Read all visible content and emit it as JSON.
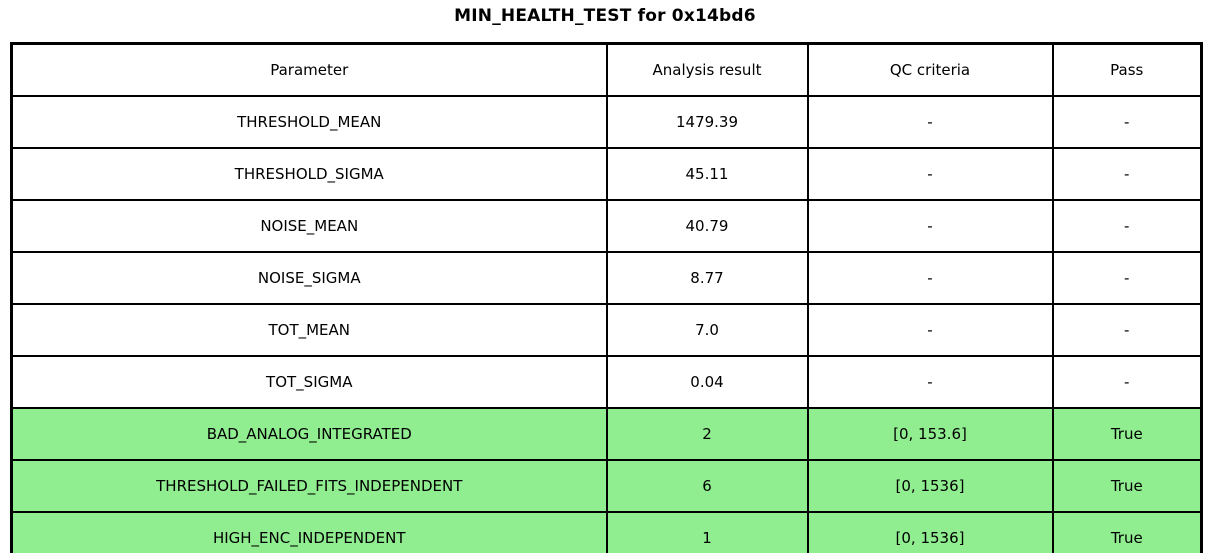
{
  "title": "MIN_HEALTH_TEST for 0x14bd6",
  "colors": {
    "pass_row_bg": "#90ee90",
    "row_bg": "#ffffff",
    "border": "#000000",
    "text": "#000000"
  },
  "table": {
    "columns": [
      "Parameter",
      "Analysis result",
      "QC criteria",
      "Pass"
    ],
    "rows": [
      {
        "parameter": "THRESHOLD_MEAN",
        "analysis_result": "1479.39",
        "qc_criteria": "-",
        "pass": "-",
        "highlighted": false
      },
      {
        "parameter": "THRESHOLD_SIGMA",
        "analysis_result": "45.11",
        "qc_criteria": "-",
        "pass": "-",
        "highlighted": false
      },
      {
        "parameter": "NOISE_MEAN",
        "analysis_result": "40.79",
        "qc_criteria": "-",
        "pass": "-",
        "highlighted": false
      },
      {
        "parameter": "NOISE_SIGMA",
        "analysis_result": "8.77",
        "qc_criteria": "-",
        "pass": "-",
        "highlighted": false
      },
      {
        "parameter": "TOT_MEAN",
        "analysis_result": "7.0",
        "qc_criteria": "-",
        "pass": "-",
        "highlighted": false
      },
      {
        "parameter": "TOT_SIGMA",
        "analysis_result": "0.04",
        "qc_criteria": "-",
        "pass": "-",
        "highlighted": false
      },
      {
        "parameter": "BAD_ANALOG_INTEGRATED",
        "analysis_result": "2",
        "qc_criteria": "[0, 153.6]",
        "pass": "True",
        "highlighted": true
      },
      {
        "parameter": "THRESHOLD_FAILED_FITS_INDEPENDENT",
        "analysis_result": "6",
        "qc_criteria": "[0, 1536]",
        "pass": "True",
        "highlighted": true
      },
      {
        "parameter": "HIGH_ENC_INDEPENDENT",
        "analysis_result": "1",
        "qc_criteria": "[0, 1536]",
        "pass": "True",
        "highlighted": true
      }
    ]
  },
  "chart_data": {
    "type": "table",
    "title": "MIN_HEALTH_TEST for 0x14bd6",
    "columns": [
      "Parameter",
      "Analysis result",
      "QC criteria",
      "Pass"
    ],
    "rows": [
      [
        "THRESHOLD_MEAN",
        "1479.39",
        "-",
        "-"
      ],
      [
        "THRESHOLD_SIGMA",
        "45.11",
        "-",
        "-"
      ],
      [
        "NOISE_MEAN",
        "40.79",
        "-",
        "-"
      ],
      [
        "NOISE_SIGMA",
        "8.77",
        "-",
        "-"
      ],
      [
        "TOT_MEAN",
        "7.0",
        "-",
        "-"
      ],
      [
        "TOT_SIGMA",
        "0.04",
        "-",
        "-"
      ],
      [
        "BAD_ANALOG_INTEGRATED",
        "2",
        "[0, 153.6]",
        "True"
      ],
      [
        "THRESHOLD_FAILED_FITS_INDEPENDENT",
        "6",
        "[0, 1536]",
        "True"
      ],
      [
        "HIGH_ENC_INDEPENDENT",
        "1",
        "[0, 1536]",
        "True"
      ]
    ],
    "highlighted_rows": [
      6,
      7,
      8
    ],
    "highlight_color": "#90ee90",
    "layout": {
      "grid": true,
      "header_background": "#ffffff",
      "cell_text_align": "center"
    }
  }
}
